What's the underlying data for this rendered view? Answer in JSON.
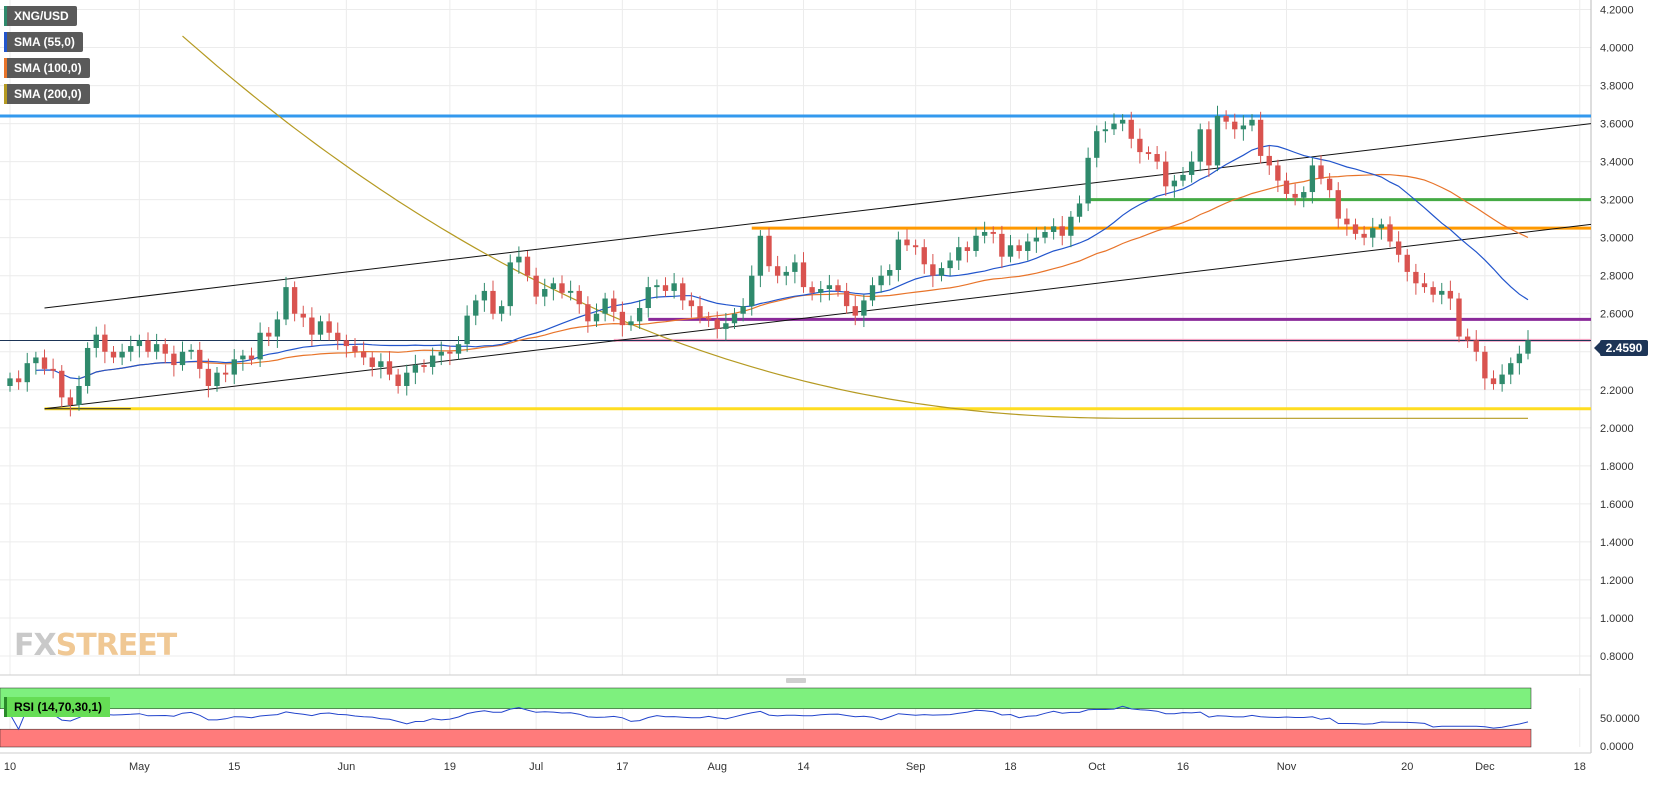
{
  "chart_data": {
    "type": "candlestick",
    "symbol": "XNG/USD",
    "current_price": "2.4590",
    "y_axis": {
      "ylim": [
        0.7,
        4.25
      ],
      "ticks": [
        "0.8000",
        "1.0000",
        "1.2000",
        "1.4000",
        "1.6000",
        "1.8000",
        "2.0000",
        "2.2000",
        "2.4000",
        "2.6000",
        "2.8000",
        "3.0000",
        "3.2000",
        "3.4000",
        "3.6000",
        "3.8000",
        "4.0000",
        "4.2000"
      ]
    },
    "x_axis": {
      "labels": [
        {
          "text": "10",
          "index": 0
        },
        {
          "text": "May",
          "index": 15
        },
        {
          "text": "15",
          "index": 26
        },
        {
          "text": "Jun",
          "index": 39
        },
        {
          "text": "19",
          "index": 51
        },
        {
          "text": "Jul",
          "index": 61
        },
        {
          "text": "17",
          "index": 71
        },
        {
          "text": "Aug",
          "index": 82
        },
        {
          "text": "14",
          "index": 92
        },
        {
          "text": "Sep",
          "index": 105
        },
        {
          "text": "18",
          "index": 116
        },
        {
          "text": "Oct",
          "index": 126
        },
        {
          "text": "16",
          "index": 136
        },
        {
          "text": "Nov",
          "index": 148
        },
        {
          "text": "20",
          "index": 162
        },
        {
          "text": "Dec",
          "index": 171
        },
        {
          "text": "18",
          "index": 182
        }
      ]
    },
    "legend": [
      "XNG/USD",
      "SMA (55,0)",
      "SMA (100,0)",
      "SMA (200,0)"
    ],
    "candles_close": [
      2.26,
      2.24,
      2.34,
      2.37,
      2.31,
      2.3,
      2.16,
      2.12,
      2.22,
      2.42,
      2.49,
      2.4,
      2.37,
      2.4,
      2.43,
      2.46,
      2.4,
      2.44,
      2.39,
      2.33,
      2.4,
      2.41,
      2.31,
      2.22,
      2.29,
      2.28,
      2.36,
      2.38,
      2.36,
      2.5,
      2.48,
      2.57,
      2.74,
      2.6,
      2.58,
      2.49,
      2.56,
      2.5,
      2.46,
      2.43,
      2.4,
      2.37,
      2.32,
      2.35,
      2.28,
      2.22,
      2.29,
      2.33,
      2.32,
      2.38,
      2.4,
      2.39,
      2.44,
      2.59,
      2.67,
      2.72,
      2.6,
      2.64,
      2.87,
      2.9,
      2.8,
      2.69,
      2.73,
      2.76,
      2.71,
      2.72,
      2.65,
      2.56,
      2.6,
      2.68,
      2.61,
      2.54,
      2.56,
      2.63,
      2.74,
      2.75,
      2.72,
      2.76,
      2.67,
      2.64,
      2.58,
      2.57,
      2.52,
      2.55,
      2.6,
      2.64,
      2.8,
      3.01,
      2.85,
      2.8,
      2.82,
      2.87,
      2.74,
      2.71,
      2.73,
      2.75,
      2.72,
      2.64,
      2.59,
      2.67,
      2.75,
      2.8,
      2.83,
      2.99,
      2.96,
      2.95,
      2.86,
      2.8,
      2.84,
      2.88,
      2.95,
      2.93,
      3.01,
      3.03,
      3.02,
      2.9,
      2.96,
      2.93,
      2.98,
      3.0,
      3.03,
      3.06,
      3.01,
      3.11,
      3.18,
      3.42,
      3.56,
      3.57,
      3.6,
      3.62,
      3.52,
      3.45,
      3.44,
      3.4,
      3.27,
      3.3,
      3.33,
      3.4,
      3.57,
      3.38,
      3.64,
      3.61,
      3.57,
      3.59,
      3.62,
      3.43,
      3.38,
      3.3,
      3.23,
      3.21,
      3.24,
      3.38,
      3.31,
      3.25,
      3.1,
      3.07,
      3.02,
      3.0,
      3.05,
      3.07,
      2.98,
      2.91,
      2.82,
      2.76,
      2.74,
      2.7,
      2.72,
      2.68,
      2.48,
      2.46,
      2.4,
      2.26,
      2.23,
      2.28,
      2.34,
      2.39,
      2.46
    ],
    "horizontal_levels": [
      3.64,
      3.2,
      3.05,
      2.57,
      2.46,
      2.1
    ],
    "rsi": {
      "label": "RSI (14,70,30,1)",
      "upper": 70,
      "lower": 30,
      "ticks": [
        "50.0000",
        "0.0000"
      ]
    }
  },
  "watermark": {
    "fx": "FX",
    "street": "STREET"
  },
  "colors": {
    "bull": "#2f8a6c",
    "bear": "#d9534f",
    "sma55": "#2255cc",
    "sma100": "#e8742a",
    "sma200": "#b59a22",
    "rsi_line": "#2244cc",
    "rsi_upper_zone": "#7ef07e",
    "rsi_lower_zone": "#ff7b7b",
    "level_blue": "#3399ee",
    "level_green": "#44aa44",
    "level_orange": "#ff9900",
    "level_purple": "#8a2a9a",
    "level_pink": "#f4a6c4",
    "level_yellow": "#ffdd22"
  }
}
